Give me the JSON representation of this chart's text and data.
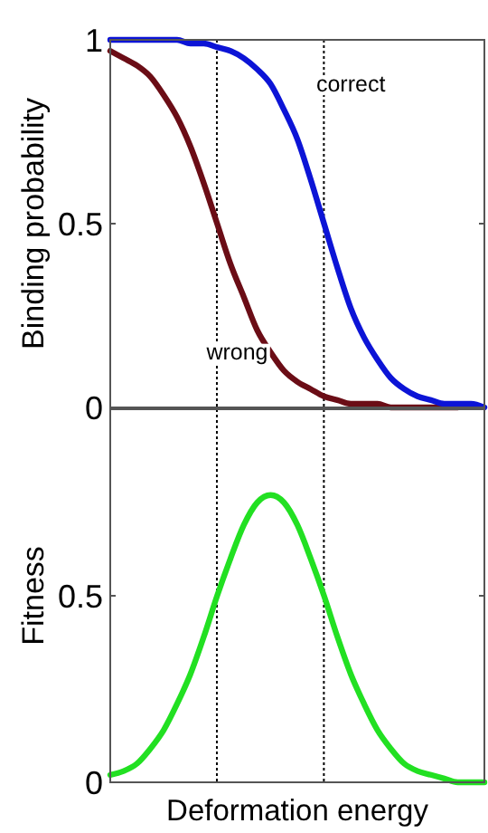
{
  "chart_data": [
    {
      "type": "line",
      "ylabel": "Binding probability",
      "categories": [
        null,
        null,
        null,
        null,
        null,
        null,
        null,
        null,
        null,
        null,
        null,
        null,
        null,
        null,
        null,
        null,
        null,
        null,
        null,
        null,
        null,
        null,
        null,
        null,
        null,
        null,
        null,
        null,
        null
      ],
      "series": [
        {
          "name": "wrong",
          "color": "#6b0d16",
          "values": [
            0.97,
            0.95,
            0.93,
            0.9,
            0.85,
            0.79,
            0.71,
            0.61,
            0.5,
            0.39,
            0.3,
            0.21,
            0.15,
            0.1,
            0.07,
            0.05,
            0.03,
            0.02,
            0.01,
            0.01,
            0.01,
            0,
            0,
            0,
            0,
            0,
            0,
            null,
            null
          ]
        },
        {
          "name": "correct",
          "color": "#0c14d6",
          "values": [
            1,
            1,
            1,
            1,
            1,
            1,
            0.99,
            0.99,
            0.98,
            0.97,
            0.95,
            0.92,
            0.88,
            0.81,
            0.73,
            0.62,
            0.5,
            0.38,
            0.27,
            0.19,
            0.13,
            0.08,
            0.05,
            0.03,
            0.02,
            0.01,
            0.01,
            0.01,
            0
          ]
        }
      ],
      "ylim": [
        0,
        1
      ],
      "yticks": [
        0,
        0.5,
        1
      ],
      "tick_labels": "y",
      "line_style": "solid"
    },
    {
      "type": "line",
      "ylabel": "Fitness",
      "xlabel": "Deformation energy",
      "categories": [
        null,
        null,
        null,
        null,
        null,
        null,
        null,
        null,
        null,
        null,
        null,
        null,
        null,
        null,
        null,
        null,
        null,
        null,
        null,
        null,
        null,
        null,
        null,
        null,
        null,
        null,
        null,
        null,
        null
      ],
      "series": [
        {
          "color": "#22e022",
          "values": [
            0.02,
            0.03,
            0.05,
            0.09,
            0.14,
            0.21,
            0.29,
            0.39,
            0.5,
            0.6,
            0.69,
            0.75,
            0.77,
            0.75,
            0.69,
            0.6,
            0.5,
            0.39,
            0.29,
            0.21,
            0.14,
            0.09,
            0.05,
            0.03,
            0.02,
            0.01,
            0,
            0,
            0
          ]
        }
      ],
      "ylim": [
        0,
        1
      ],
      "yticks": [
        0,
        0.5
      ],
      "tick_labels": "y",
      "line_style": "solid"
    }
  ]
}
